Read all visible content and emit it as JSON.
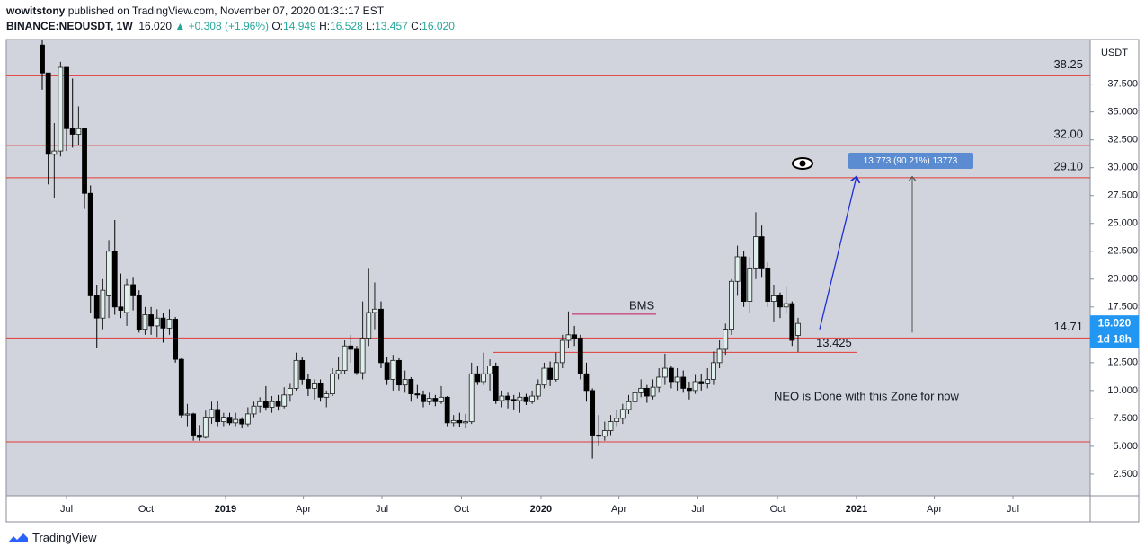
{
  "header": {
    "author": "wowitstony",
    "published": "published on TradingView.com, November 07, 2020 01:31:17 EST",
    "symbol": "BINANCE:NEOUSDT, 1W",
    "last": "16.020",
    "change": "▲ +0.308 (+1.96%)",
    "ohlc": [
      {
        "label": "O:",
        "value": "14.949"
      },
      {
        "label": "H:",
        "value": "16.528"
      },
      {
        "label": "L:",
        "value": "13.457"
      },
      {
        "label": "C:",
        "value": "16.020"
      }
    ]
  },
  "footer": {
    "brand": "TradingView"
  },
  "chart_data": {
    "type": "candlestick",
    "currency": "USDT",
    "up_color": "#e0efeb",
    "down_color": "#000000",
    "outline_color": "#1c1c1c",
    "level_color": "#e53935",
    "grid": false,
    "ylim": [
      0.56,
      41.5
    ],
    "yticks": [
      {
        "value": 2.5,
        "label": "2.500"
      },
      {
        "value": 5,
        "label": "5.000"
      },
      {
        "value": 7.5,
        "label": "7.500"
      },
      {
        "value": 10,
        "label": "10.000"
      },
      {
        "value": 12.5,
        "label": "12.500"
      },
      {
        "value": 15,
        "label": "15.000"
      },
      {
        "value": 17.5,
        "label": "17.500"
      },
      {
        "value": 20,
        "label": "20.000"
      },
      {
        "value": 22.5,
        "label": "22.500"
      },
      {
        "value": 25,
        "label": "25.000"
      },
      {
        "value": 27.5,
        "label": "27.500"
      },
      {
        "value": 30,
        "label": "30.000"
      },
      {
        "value": 32.5,
        "label": "32.500"
      },
      {
        "value": 35,
        "label": "35.000"
      },
      {
        "value": 37.5,
        "label": "37.500"
      }
    ],
    "xlim": [
      2018.305,
      2021.741
    ],
    "xticks": [
      {
        "value": 2018.496,
        "label": "Jul"
      },
      {
        "value": 2018.748,
        "label": "Oct"
      },
      2019,
      {
        "value": 2019.247,
        "label": "Apr"
      },
      {
        "value": 2019.496,
        "label": "Jul"
      },
      {
        "value": 2019.748,
        "label": "Oct"
      },
      2020,
      {
        "value": 2020.247,
        "label": "Apr"
      },
      {
        "value": 2020.497,
        "label": "Jul"
      },
      {
        "value": 2020.75,
        "label": "Oct"
      },
      2021,
      {
        "value": 2021.247,
        "label": "Apr"
      },
      {
        "value": 2021.496,
        "label": "Jul"
      }
    ],
    "levels": [
      {
        "value": 38.25,
        "label": "38.25"
      },
      {
        "value": 32.0,
        "label": "32.00"
      },
      {
        "value": 29.1,
        "label": "29.10"
      },
      {
        "value": 14.71,
        "label": "14.71"
      },
      {
        "value": 5.4
      }
    ],
    "zone_line": {
      "value": 13.425,
      "label": "13.425"
    },
    "bms_line": {
      "value": 16.85,
      "label": "BMS"
    },
    "annotation": "NEO is Done with this Zone for now",
    "trend_arrow": {
      "from": 15.5,
      "to": 29.2
    },
    "measure": {
      "from": 15.2,
      "to": 29.2,
      "label": "13.773 (90.21%) 13773"
    },
    "price_tag": {
      "value": 16.02,
      "label": "16.020"
    },
    "countdown": "1d 18h",
    "candles": [
      [
        2018.419,
        41,
        41.5,
        37,
        38.5
      ],
      [
        2018.438,
        38.5,
        38.5,
        28.5,
        31.2
      ],
      [
        2018.457,
        31.2,
        34,
        27.3,
        31.5
      ],
      [
        2018.477,
        31.5,
        39.5,
        31,
        39
      ],
      [
        2018.496,
        39,
        39,
        31.5,
        33.5
      ],
      [
        2018.515,
        33.5,
        38,
        31.8,
        33
      ],
      [
        2018.534,
        33,
        35.5,
        32,
        33.5
      ],
      [
        2018.553,
        33.5,
        33.6,
        26.3,
        27.7
      ],
      [
        2018.572,
        27.7,
        28.4,
        17,
        18.5
      ],
      [
        2018.592,
        18.5,
        19.5,
        13.8,
        16.5
      ],
      [
        2018.611,
        16.5,
        20,
        15.5,
        19
      ],
      [
        2018.63,
        18.5,
        23.5,
        16.5,
        22.5
      ],
      [
        2018.649,
        22.5,
        25.3,
        16.8,
        17.5
      ],
      [
        2018.668,
        17.5,
        20.5,
        16.5,
        17.2
      ],
      [
        2018.687,
        17,
        20,
        15.8,
        19.5
      ],
      [
        2018.707,
        19.5,
        20.2,
        17.2,
        18.5
      ],
      [
        2018.726,
        18.5,
        19,
        15.2,
        15.5
      ],
      [
        2018.745,
        15.5,
        17.5,
        15,
        16.8
      ],
      [
        2018.764,
        16.8,
        17.5,
        15,
        15.8
      ],
      [
        2018.783,
        15.8,
        17.3,
        14.8,
        16.5
      ],
      [
        2018.802,
        16.5,
        17,
        14.3,
        15.6
      ],
      [
        2018.822,
        15.6,
        17.3,
        15,
        16.4
      ],
      [
        2018.841,
        16.4,
        16.6,
        12.5,
        12.8
      ],
      [
        2018.86,
        12.8,
        12.9,
        7.5,
        7.8
      ],
      [
        2018.879,
        7.8,
        8.8,
        6.8,
        7.9
      ],
      [
        2018.898,
        7.9,
        8,
        5.5,
        6
      ],
      [
        2018.917,
        6,
        6.9,
        5.5,
        5.8
      ],
      [
        2018.937,
        5.8,
        8.2,
        5.7,
        7.6
      ],
      [
        2018.956,
        7.6,
        9,
        7,
        8.3
      ],
      [
        2018.975,
        8.3,
        9.1,
        6.8,
        7.2
      ],
      [
        2018.994,
        7.2,
        8,
        6.8,
        7.6
      ],
      [
        2019.013,
        7.6,
        8,
        6.9,
        7.1
      ],
      [
        2019.032,
        7.1,
        8,
        6.8,
        7.4
      ],
      [
        2019.052,
        7.4,
        7.6,
        6.6,
        7
      ],
      [
        2019.071,
        7,
        8.5,
        6.8,
        7.9
      ],
      [
        2019.09,
        7.9,
        9,
        7.6,
        8.6
      ],
      [
        2019.109,
        8.6,
        9.4,
        8,
        9
      ],
      [
        2019.128,
        9,
        10.4,
        8.2,
        8.5
      ],
      [
        2019.147,
        8.5,
        9.5,
        8,
        9
      ],
      [
        2019.167,
        9,
        9.6,
        8.2,
        8.6
      ],
      [
        2019.186,
        8.6,
        10.3,
        8.4,
        9.6
      ],
      [
        2019.205,
        9.6,
        10.6,
        9,
        10.2
      ],
      [
        2019.224,
        10.2,
        13.4,
        10,
        12.7
      ],
      [
        2019.243,
        12.7,
        13,
        10.5,
        11
      ],
      [
        2019.262,
        11,
        11.5,
        9.5,
        10.2
      ],
      [
        2019.282,
        10.2,
        11,
        9.2,
        10.6
      ],
      [
        2019.301,
        10.6,
        11,
        9,
        9.4
      ],
      [
        2019.32,
        9.4,
        10,
        8.5,
        9.7
      ],
      [
        2019.339,
        9.7,
        12,
        9.5,
        11.5
      ],
      [
        2019.358,
        11.5,
        13,
        11,
        11.8
      ],
      [
        2019.378,
        11.8,
        14.5,
        11.5,
        14
      ],
      [
        2019.397,
        14,
        15,
        12.5,
        13.7
      ],
      [
        2019.416,
        13.7,
        14,
        11.4,
        11.6
      ],
      [
        2019.435,
        11.6,
        18,
        11,
        14.7
      ],
      [
        2019.454,
        14.7,
        21,
        14,
        17
      ],
      [
        2019.473,
        17,
        19.7,
        15.5,
        17.3
      ],
      [
        2019.493,
        17.3,
        18,
        12,
        12.5
      ],
      [
        2019.512,
        12.5,
        13,
        10.5,
        11
      ],
      [
        2019.531,
        11,
        13.2,
        10,
        12.7
      ],
      [
        2019.55,
        12.7,
        12.9,
        10,
        10.5
      ],
      [
        2019.569,
        10.5,
        11.8,
        9.8,
        11
      ],
      [
        2019.588,
        11,
        11.2,
        9,
        9.7
      ],
      [
        2019.608,
        9.7,
        10.5,
        9.3,
        9.6
      ],
      [
        2019.627,
        9.6,
        10,
        8.5,
        9
      ],
      [
        2019.646,
        9,
        9.8,
        8.7,
        9.3
      ],
      [
        2019.665,
        9.3,
        9.6,
        8.6,
        9
      ],
      [
        2019.684,
        9,
        10.4,
        8.8,
        9.4
      ],
      [
        2019.703,
        9.4,
        9.5,
        6.8,
        7.1
      ],
      [
        2019.723,
        7.1,
        7.8,
        6.8,
        7.3
      ],
      [
        2019.742,
        7.3,
        8,
        6.7,
        7.1
      ],
      [
        2019.761,
        7.1,
        7.9,
        6.6,
        7.2
      ],
      [
        2019.78,
        7.2,
        12.5,
        7,
        11.5
      ],
      [
        2019.799,
        11.5,
        12.2,
        10.5,
        10.8
      ],
      [
        2019.818,
        10.8,
        13.4,
        10.5,
        11.5
      ],
      [
        2019.838,
        11.5,
        12.8,
        10,
        12.2
      ],
      [
        2019.857,
        12.2,
        12.5,
        8.8,
        9.1
      ],
      [
        2019.876,
        9.1,
        10,
        8.5,
        9.5
      ],
      [
        2019.895,
        9.5,
        9.8,
        8.4,
        9.2
      ],
      [
        2019.914,
        9.2,
        9.6,
        8.3,
        9.1
      ],
      [
        2019.933,
        9.1,
        9.8,
        8,
        9.4
      ],
      [
        2019.953,
        9.4,
        9.7,
        8.7,
        9
      ],
      [
        2019.972,
        9,
        10,
        8.8,
        9.5
      ],
      [
        2019.991,
        9.5,
        11,
        9.2,
        10.5
      ],
      [
        2020.01,
        10.5,
        12.5,
        10.2,
        12
      ],
      [
        2020.029,
        12,
        12.6,
        10.4,
        11
      ],
      [
        2020.048,
        11,
        13.4,
        10.8,
        12.5
      ],
      [
        2020.068,
        12.5,
        15,
        12,
        14.5
      ],
      [
        2020.087,
        14.5,
        17.1,
        13.8,
        15
      ],
      [
        2020.106,
        15,
        15.8,
        14,
        14.7
      ],
      [
        2020.125,
        14.7,
        15,
        11,
        11.5
      ],
      [
        2020.144,
        11.5,
        12.5,
        9,
        10
      ],
      [
        2020.163,
        10,
        10.2,
        3.9,
        6
      ],
      [
        2020.183,
        6,
        7.8,
        5,
        5.9
      ],
      [
        2020.202,
        5.9,
        7.2,
        5.5,
        6.4
      ],
      [
        2020.221,
        6.4,
        7.8,
        6,
        7.2
      ],
      [
        2020.24,
        7.2,
        8.3,
        6.8,
        7.5
      ],
      [
        2020.259,
        7.5,
        8.8,
        7,
        8.3
      ],
      [
        2020.278,
        8.3,
        9.6,
        7.9,
        9
      ],
      [
        2020.298,
        9,
        10.3,
        8.5,
        9.8
      ],
      [
        2020.317,
        9.8,
        11,
        9.4,
        10.2
      ],
      [
        2020.336,
        10.2,
        10.5,
        8.9,
        9.5
      ],
      [
        2020.355,
        9.5,
        11,
        9.2,
        10.3
      ],
      [
        2020.374,
        10.3,
        12,
        9.8,
        11.2
      ],
      [
        2020.393,
        11.2,
        13.3,
        10.5,
        12
      ],
      [
        2020.413,
        12,
        12.2,
        10.2,
        10.8
      ],
      [
        2020.432,
        10.8,
        12,
        10,
        11.2
      ],
      [
        2020.451,
        11.2,
        11.8,
        9.8,
        10.2
      ],
      [
        2020.47,
        10.2,
        10.8,
        9.2,
        10
      ],
      [
        2020.489,
        10,
        11.4,
        9.7,
        10.8
      ],
      [
        2020.508,
        10.8,
        11.5,
        10,
        10.6
      ],
      [
        2020.528,
        10.6,
        12,
        10.2,
        11
      ],
      [
        2020.547,
        11,
        13.5,
        10.5,
        12.5
      ],
      [
        2020.566,
        12.5,
        14.5,
        12,
        13.7
      ],
      [
        2020.585,
        13.7,
        16,
        13.2,
        15.5
      ],
      [
        2020.604,
        15.5,
        20,
        15,
        19.8
      ],
      [
        2020.623,
        19.8,
        23,
        18.5,
        22
      ],
      [
        2020.643,
        22,
        22.5,
        17.5,
        18
      ],
      [
        2020.662,
        18,
        22,
        17,
        21
      ],
      [
        2020.681,
        21,
        26,
        20,
        23.8
      ],
      [
        2020.7,
        23.8,
        24.8,
        20.2,
        21
      ],
      [
        2020.719,
        21,
        21.5,
        17.5,
        18
      ],
      [
        2020.738,
        18,
        19.5,
        16.2,
        18.5
      ],
      [
        2020.758,
        18.5,
        18.8,
        16.5,
        17.5
      ],
      [
        2020.777,
        17.5,
        19.3,
        17,
        17.8
      ],
      [
        2020.796,
        17.8,
        18,
        14,
        14.5
      ],
      [
        2020.815,
        14.949,
        16.528,
        13.457,
        16.02
      ]
    ]
  }
}
